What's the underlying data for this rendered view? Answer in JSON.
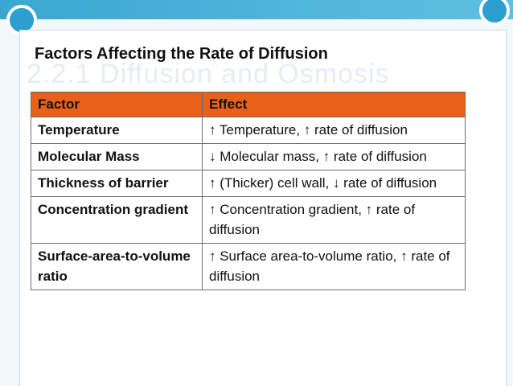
{
  "slide": {
    "title": "Factors Affecting the Rate of Diffusion",
    "ghost_heading": "2.2.1 Diffusion and Osmosis"
  },
  "table": {
    "headers": [
      "Factor",
      "Effect"
    ],
    "rows": [
      {
        "factor": "Temperature",
        "effect": "↑ Temperature, ↑ rate of diffusion"
      },
      {
        "factor": "Molecular Mass",
        "effect": "↓ Molecular mass, ↑ rate of diffusion"
      },
      {
        "factor": "Thickness of barrier",
        "effect": "↑ (Thicker) cell wall, ↓ rate of diffusion"
      },
      {
        "factor": "Concentration gradient",
        "effect": "↑ Concentration gradient, ↑ rate of diffusion"
      },
      {
        "factor": "Surface-area-to-volume ratio",
        "effect": "↑ Surface area-to-volume ratio, ↑ rate of diffusion"
      }
    ]
  },
  "colors": {
    "header_fill": "#e8611a",
    "accent_band": "#3aa7d1"
  }
}
